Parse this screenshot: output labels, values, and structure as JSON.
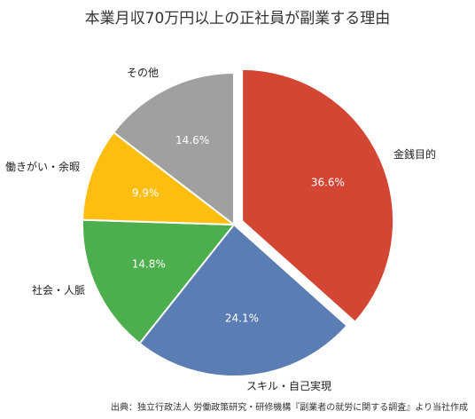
{
  "chart_data": {
    "type": "pie",
    "title": "本業月収70万円以上の正社員が副業する理由",
    "slices": [
      {
        "label": "金銭目的",
        "value": 36.6,
        "value_label": "36.6%",
        "color": "#d44634",
        "exploded": true
      },
      {
        "label": "スキル・自己実現",
        "value": 24.1,
        "value_label": "24.1%",
        "color": "#5a7db3",
        "exploded": false
      },
      {
        "label": "社会・人脈",
        "value": 14.8,
        "value_label": "14.8%",
        "color": "#4cae4c",
        "exploded": false
      },
      {
        "label": "働きがい・余暇",
        "value": 9.9,
        "value_label": "9.9%",
        "color": "#fdbe10",
        "exploded": false
      },
      {
        "label": "その他",
        "value": 14.6,
        "value_label": "14.6%",
        "color": "#a0a0a0",
        "exploded": false
      }
    ],
    "legend": "none",
    "source": "出典：独立行政法人 労働政策研究・研修機構『副業者の就労に関する調査』より当社作成"
  }
}
